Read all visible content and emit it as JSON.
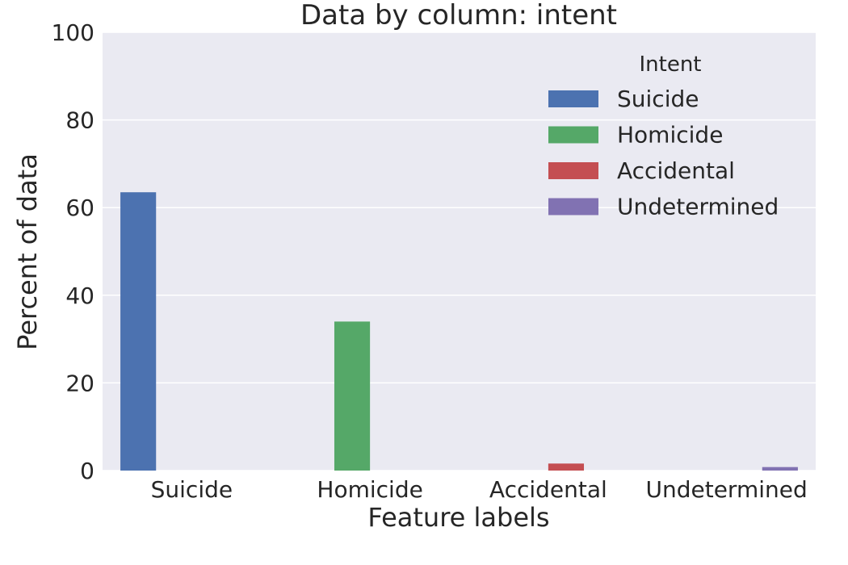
{
  "chart_data": {
    "type": "bar",
    "title": "Data by column: intent",
    "xlabel": "Feature labels",
    "ylabel": "Percent of data",
    "categories": [
      "Suicide",
      "Homicide",
      "Accidental",
      "Undetermined"
    ],
    "ylim": [
      0,
      100
    ],
    "yticks": [
      0,
      20,
      40,
      60,
      80,
      100
    ],
    "grid": true,
    "legend": {
      "title": "Intent",
      "placement": "top-right"
    },
    "series": [
      {
        "name": "Suicide",
        "color": "#4c72b0",
        "values": [
          63.5,
          0,
          0,
          0
        ]
      },
      {
        "name": "Homicide",
        "color": "#55a868",
        "values": [
          0,
          34.0,
          0,
          0
        ]
      },
      {
        "name": "Accidental",
        "color": "#c44e52",
        "values": [
          0,
          0,
          1.6,
          0
        ]
      },
      {
        "name": "Undetermined",
        "color": "#8172b2",
        "values": [
          0,
          0,
          0,
          0.8
        ]
      }
    ]
  },
  "colors": {
    "plot_background": "#eaeaf2",
    "grid": "#ffffff",
    "text": "#262626"
  }
}
